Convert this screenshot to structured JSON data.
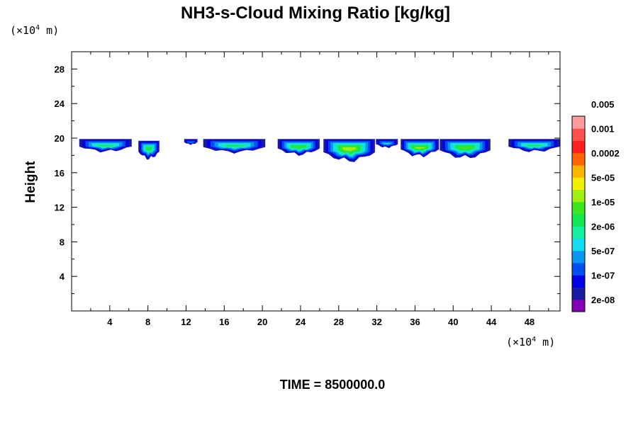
{
  "chart_data": {
    "type": "heatmap",
    "title": "NH3-s-Cloud Mixing Ratio [kg/kg]",
    "ylabel": "Height",
    "x_unit": {
      "prefix": "(×10",
      "exp": "4",
      "suffix": " m)"
    },
    "y_unit": {
      "prefix": "(×10",
      "exp": "4",
      "suffix": " m)"
    },
    "xlim": [
      0,
      51.2
    ],
    "ylim": [
      0,
      30
    ],
    "x_ticks": [
      4,
      8,
      12,
      16,
      20,
      24,
      28,
      32,
      36,
      40,
      44,
      48
    ],
    "y_ticks": [
      4,
      8,
      12,
      16,
      20,
      24,
      28
    ],
    "footer": "TIME = 8500000.0",
    "colorbar": {
      "colors": [
        "#7f00b2",
        "#1a1aa0",
        "#0000e6",
        "#0050f0",
        "#0a96f0",
        "#14dcf0",
        "#14f0a0",
        "#14e650",
        "#3ce61e",
        "#a0f014",
        "#f0f000",
        "#ffb400",
        "#ff6400",
        "#ff1e1e",
        "#ff5050",
        "#ff9b9b"
      ],
      "labels": [
        "2e-08",
        "1e-07",
        "5e-07",
        "2e-06",
        "1e-05",
        "5e-05",
        "0.0002",
        "0.001",
        "0.005"
      ]
    },
    "cloud_patches": [
      {
        "x": [
          0.8,
          6.3
        ],
        "top": 19.9,
        "bottom": 18.3,
        "max_level": 6
      },
      {
        "x": [
          7.0,
          9.2
        ],
        "top": 19.7,
        "bottom": 17.4,
        "max_level": 6
      },
      {
        "x": [
          11.8,
          13.2
        ],
        "top": 19.9,
        "bottom": 19.2,
        "max_level": 3
      },
      {
        "x": [
          13.8,
          20.3
        ],
        "top": 19.9,
        "bottom": 18.2,
        "max_level": 6
      },
      {
        "x": [
          21.6,
          26.0
        ],
        "top": 19.9,
        "bottom": 17.9,
        "max_level": 7
      },
      {
        "x": [
          26.4,
          31.8
        ],
        "top": 19.9,
        "bottom": 17.1,
        "max_level": 8
      },
      {
        "x": [
          31.9,
          34.2
        ],
        "top": 19.9,
        "bottom": 18.8,
        "max_level": 4
      },
      {
        "x": [
          34.5,
          38.5
        ],
        "top": 19.9,
        "bottom": 17.7,
        "max_level": 8
      },
      {
        "x": [
          38.6,
          43.9
        ],
        "top": 19.9,
        "bottom": 17.5,
        "max_level": 7
      },
      {
        "x": [
          45.8,
          51.2
        ],
        "top": 19.9,
        "bottom": 18.3,
        "max_level": 6
      }
    ]
  }
}
